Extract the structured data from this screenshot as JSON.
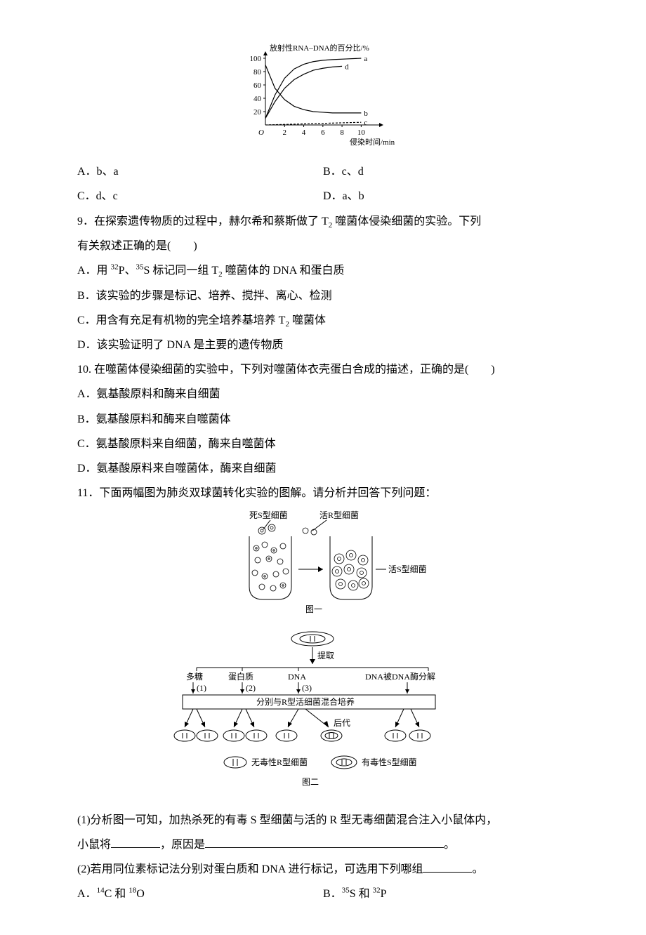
{
  "chart1": {
    "type": "line",
    "ylabel": "放射性RNA–DNA的百分比/%",
    "xlabel": "侵染时间/min",
    "xticks": [
      "2",
      "4",
      "6",
      "8",
      "10"
    ],
    "yticks": [
      "20",
      "40",
      "60",
      "80",
      "100"
    ],
    "xlim": [
      0,
      11
    ],
    "ylim": [
      0,
      100
    ],
    "series": {
      "a": {
        "label": "a",
        "pts": [
          [
            0,
            10
          ],
          [
            1,
            45
          ],
          [
            2,
            70
          ],
          [
            3,
            84
          ],
          [
            4,
            91
          ],
          [
            5,
            95
          ],
          [
            6,
            97
          ],
          [
            7,
            98
          ],
          [
            8.5,
            99
          ],
          [
            10,
            100
          ]
        ],
        "color": "#000"
      },
      "d": {
        "label": "d",
        "pts": [
          [
            0,
            10
          ],
          [
            1,
            35
          ],
          [
            2,
            55
          ],
          [
            3,
            68
          ],
          [
            4,
            76
          ],
          [
            5,
            82
          ],
          [
            6,
            85
          ],
          [
            7,
            87
          ],
          [
            8,
            88
          ]
        ],
        "color": "#000"
      },
      "b": {
        "label": "b",
        "pts": [
          [
            0,
            90
          ],
          [
            1,
            55
          ],
          [
            2,
            38
          ],
          [
            3,
            28
          ],
          [
            4,
            23
          ],
          [
            5,
            20
          ],
          [
            6,
            19
          ],
          [
            7,
            18
          ],
          [
            8,
            18
          ],
          [
            10,
            18
          ]
        ],
        "color": "#000"
      },
      "c": {
        "label": "c",
        "pts": [
          [
            0,
            0
          ],
          [
            10,
            4
          ]
        ],
        "color": "#000",
        "dashed": true
      }
    },
    "line_width": 1.2,
    "axis_color": "#000",
    "font_size": 11
  },
  "q8_opts": {
    "A": "A．b、a",
    "B": "B．c、d",
    "C": "C．d、c",
    "D": "D．a、b"
  },
  "q9": {
    "stem_l1": "9．在探索遗传物质的过程中，赫尔希和蔡斯做了 T",
    "stem_sub": "2",
    "stem_l1b": " 噬菌体侵染细菌的实验。下列",
    "stem_l2": "有关叙述正确的是(　　)",
    "A_pre": "A．用 ",
    "A_iso1": "32",
    "A_iso1t": "P、",
    "A_iso2": "35",
    "A_iso2t": "S 标记同一组 T",
    "A_sub": "2",
    "A_post": " 噬菌体的 DNA 和蛋白质",
    "B": "B．该实验的步骤是标记、培养、搅拌、离心、检测",
    "C_pre": "C．用含有充足有机物的完全培养基培养 T",
    "C_sub": "2",
    "C_post": " 噬菌体",
    "D": "D．该实验证明了 DNA 是主要的遗传物质"
  },
  "q10": {
    "stem": "10. 在噬菌体侵染细菌的实验中，下列对噬菌体衣壳蛋白合成的描述，正确的是(　　)",
    "A": "A．氨基酸原料和酶来自细菌",
    "B": "B．氨基酸原料和酶来自噬菌体",
    "C": "C．氨基酸原料来自细菌，酶来自噬菌体",
    "D": "D．氨基酸原料来自噬菌体，酶来自细菌"
  },
  "q11": {
    "stem": "11．下面两幅图为肺炎双球菌转化实验的图解。请分析并回答下列问题：",
    "fig1": {
      "dead_s": "死S型细菌",
      "live_r": "活R型细菌",
      "live_s": "活S型细菌",
      "label": "图一"
    },
    "fig2": {
      "extract": "提取",
      "cols": [
        "多糖",
        "蛋白质",
        "DNA",
        "DNA被DNA酶分解"
      ],
      "col_idx": [
        "(1)",
        "(2)",
        "(3)",
        ""
      ],
      "mix": "分别与R型活细菌混合培养",
      "progeny": "后代",
      "legend_r": "无毒性R型细菌",
      "legend_s": "有毒性S型细菌",
      "label": "图二"
    },
    "sub1_a": "(1)分析图一可知，加热杀死的有毒 S 型细菌与活的 R 型无毒细菌混合注入小鼠体内，",
    "sub1_b_pre": "小鼠将",
    "sub1_b_mid": "，原因是",
    "sub2": "(2)若用同位素标记法分别对蛋白质和 DNA 进行标记，可选用下列哪组",
    "optA_pre": "A．",
    "optA_1": "14",
    "optA_1t": "C 和 ",
    "optA_2": "18",
    "optA_2t": "O",
    "optB_pre": "B．",
    "optB_1": "35",
    "optB_1t": "S 和 ",
    "optB_2": "32",
    "optB_2t": "P"
  }
}
